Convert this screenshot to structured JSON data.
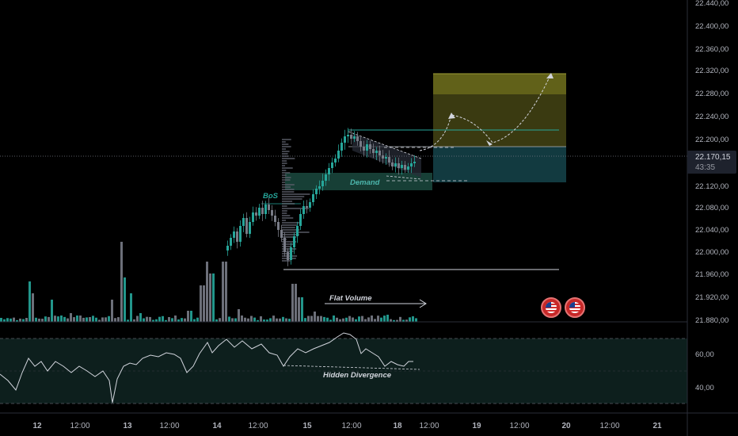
{
  "price_axis": {
    "labels": [
      "22.440,00",
      "22.400,00",
      "22.360,00",
      "22.320,00",
      "22.280,00",
      "22.240,00",
      "22.200,00",
      "22.120,00",
      "22.080,00",
      "22.040,00",
      "22.000,00",
      "21.960,00",
      "21.920,00",
      "21.880,00"
    ],
    "current_price": "22.170,15",
    "countdown": "43:35"
  },
  "rsi_axis": {
    "labels": [
      "60,00",
      "40,00"
    ]
  },
  "time_axis": {
    "labels": [
      "12",
      "12:00",
      "13",
      "12:00",
      "14",
      "12:00",
      "15",
      "12:00",
      "18",
      "12:00",
      "19",
      "12:00",
      "20",
      "12:00",
      "21"
    ],
    "bold": [
      true,
      false,
      true,
      false,
      true,
      false,
      true,
      false,
      true,
      false,
      true,
      false,
      true,
      false,
      true
    ]
  },
  "annotations": {
    "bos": "BoS",
    "demand": "Demand",
    "flat_volume": "Flat Volume",
    "hidden_divergence": "Hidden Divergence"
  },
  "colors": {
    "up": "#26a69a",
    "down": "#787b86",
    "target_zone": "#b5b53a",
    "stop_zone": "#1f5f6a",
    "demand_zone": "#1e4d44",
    "rsi_bg": "#0f1e1c"
  },
  "events": [
    {
      "icon": "us-flag-icon"
    },
    {
      "icon": "us-flag-icon"
    }
  ]
}
